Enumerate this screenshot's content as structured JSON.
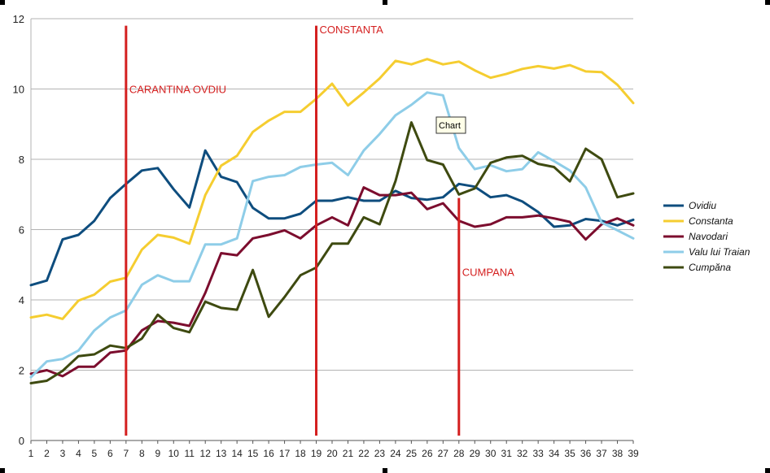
{
  "chart_data": {
    "type": "line",
    "title": "",
    "xlabel": "",
    "ylabel": "",
    "ylim": [
      0,
      12
    ],
    "yticks": [
      0,
      2,
      4,
      6,
      8,
      10,
      12
    ],
    "grid": "horizontal",
    "legend_position": "right",
    "x": [
      1,
      2,
      3,
      4,
      5,
      6,
      7,
      8,
      9,
      10,
      11,
      12,
      13,
      14,
      15,
      16,
      17,
      18,
      19,
      20,
      21,
      22,
      23,
      24,
      25,
      26,
      27,
      28,
      29,
      30,
      31,
      32,
      33,
      34,
      35,
      36,
      37,
      38,
      39
    ],
    "series": [
      {
        "name": "Ovidiu",
        "color": "#0e4d7e",
        "values": [
          4.42,
          4.55,
          5.72,
          5.85,
          6.25,
          6.9,
          7.3,
          7.68,
          7.75,
          7.15,
          6.63,
          8.25,
          7.5,
          7.35,
          6.62,
          6.32,
          6.32,
          6.45,
          6.82,
          6.82,
          6.92,
          6.82,
          6.82,
          7.1,
          6.9,
          6.85,
          6.92,
          7.3,
          7.22,
          6.92,
          6.98,
          6.8,
          6.5,
          6.08,
          6.12,
          6.3,
          6.25,
          6.12,
          6.28
        ]
      },
      {
        "name": "Constanta",
        "color": "#f5cd30",
        "values": [
          3.5,
          3.58,
          3.46,
          3.98,
          4.15,
          4.52,
          4.63,
          5.43,
          5.85,
          5.77,
          5.6,
          6.98,
          7.82,
          8.1,
          8.78,
          9.1,
          9.35,
          9.35,
          9.72,
          10.15,
          9.53,
          9.9,
          10.3,
          10.8,
          10.7,
          10.85,
          10.7,
          10.78,
          10.53,
          10.32,
          10.43,
          10.57,
          10.65,
          10.58,
          10.68,
          10.5,
          10.48,
          10.12,
          9.6
        ]
      },
      {
        "name": "Navodari",
        "color": "#7c0d2e",
        "values": [
          1.9,
          2.0,
          1.83,
          2.1,
          2.1,
          2.5,
          2.56,
          3.13,
          3.4,
          3.35,
          3.26,
          4.2,
          5.33,
          5.27,
          5.75,
          5.85,
          5.98,
          5.75,
          6.12,
          6.35,
          6.12,
          7.2,
          6.98,
          6.98,
          7.05,
          6.58,
          6.75,
          6.25,
          6.08,
          6.15,
          6.35,
          6.35,
          6.4,
          6.32,
          6.22,
          5.72,
          6.15,
          6.32,
          6.12
        ]
      },
      {
        "name": "Valu lui Traian",
        "color": "#8ecde8",
        "values": [
          1.8,
          2.25,
          2.32,
          2.56,
          3.13,
          3.5,
          3.7,
          4.43,
          4.7,
          4.53,
          4.53,
          5.58,
          5.58,
          5.75,
          7.38,
          7.5,
          7.55,
          7.78,
          7.85,
          7.9,
          7.55,
          8.25,
          8.72,
          9.25,
          9.55,
          9.9,
          9.82,
          8.32,
          7.72,
          7.83,
          7.66,
          7.72,
          8.2,
          7.95,
          7.68,
          7.2,
          6.2,
          5.98,
          5.75
        ]
      },
      {
        "name": "Cumpăna",
        "color": "#3e4a10",
        "values": [
          1.63,
          1.7,
          1.98,
          2.4,
          2.45,
          2.7,
          2.63,
          2.9,
          3.58,
          3.2,
          3.08,
          3.95,
          3.77,
          3.72,
          4.85,
          3.52,
          4.08,
          4.7,
          4.92,
          5.6,
          5.6,
          6.35,
          6.15,
          7.38,
          9.05,
          7.98,
          7.85,
          7.0,
          7.17,
          7.9,
          8.05,
          8.1,
          7.87,
          7.78,
          7.37,
          8.3,
          8.0,
          6.92,
          7.03
        ]
      }
    ],
    "annotations": [
      {
        "name": "annotation-carantina-ovidiu",
        "label": "CARANTINA OVDIU",
        "x": 7,
        "y_from": 0,
        "y_to": 11.8,
        "label_y": 10,
        "color": "#d41f1f"
      },
      {
        "name": "annotation-constanta",
        "label": "CONSTANTA",
        "x": 19,
        "y_from": 0,
        "y_to": 11.8,
        "label_y": 11.7,
        "color": "#d41f1f"
      },
      {
        "name": "annotation-cumpana",
        "label": "CUMPANA",
        "x": 28,
        "y_from": 0,
        "y_to": 6.9,
        "label_y": 4.8,
        "color": "#d41f1f"
      }
    ]
  },
  "tooltip": {
    "label": "Chart"
  }
}
